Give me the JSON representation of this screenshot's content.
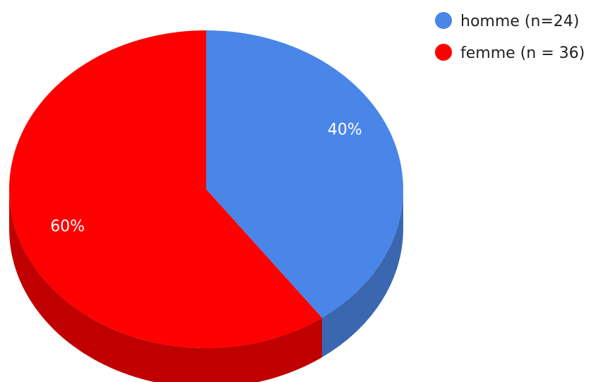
{
  "chart_data": {
    "type": "pie",
    "style": "3d",
    "categories": [
      "homme (n=24)",
      "femme (n = 36)"
    ],
    "values": [
      24,
      36
    ],
    "percent_labels": [
      "40%",
      "60%"
    ],
    "colors": [
      "#4A86E8",
      "#FF0000"
    ],
    "side_colors": [
      "#3A67B0",
      "#C00000"
    ],
    "legend": {
      "position": "top-right",
      "entries": [
        "homme (n=24)",
        "femme (n = 36)"
      ]
    }
  }
}
